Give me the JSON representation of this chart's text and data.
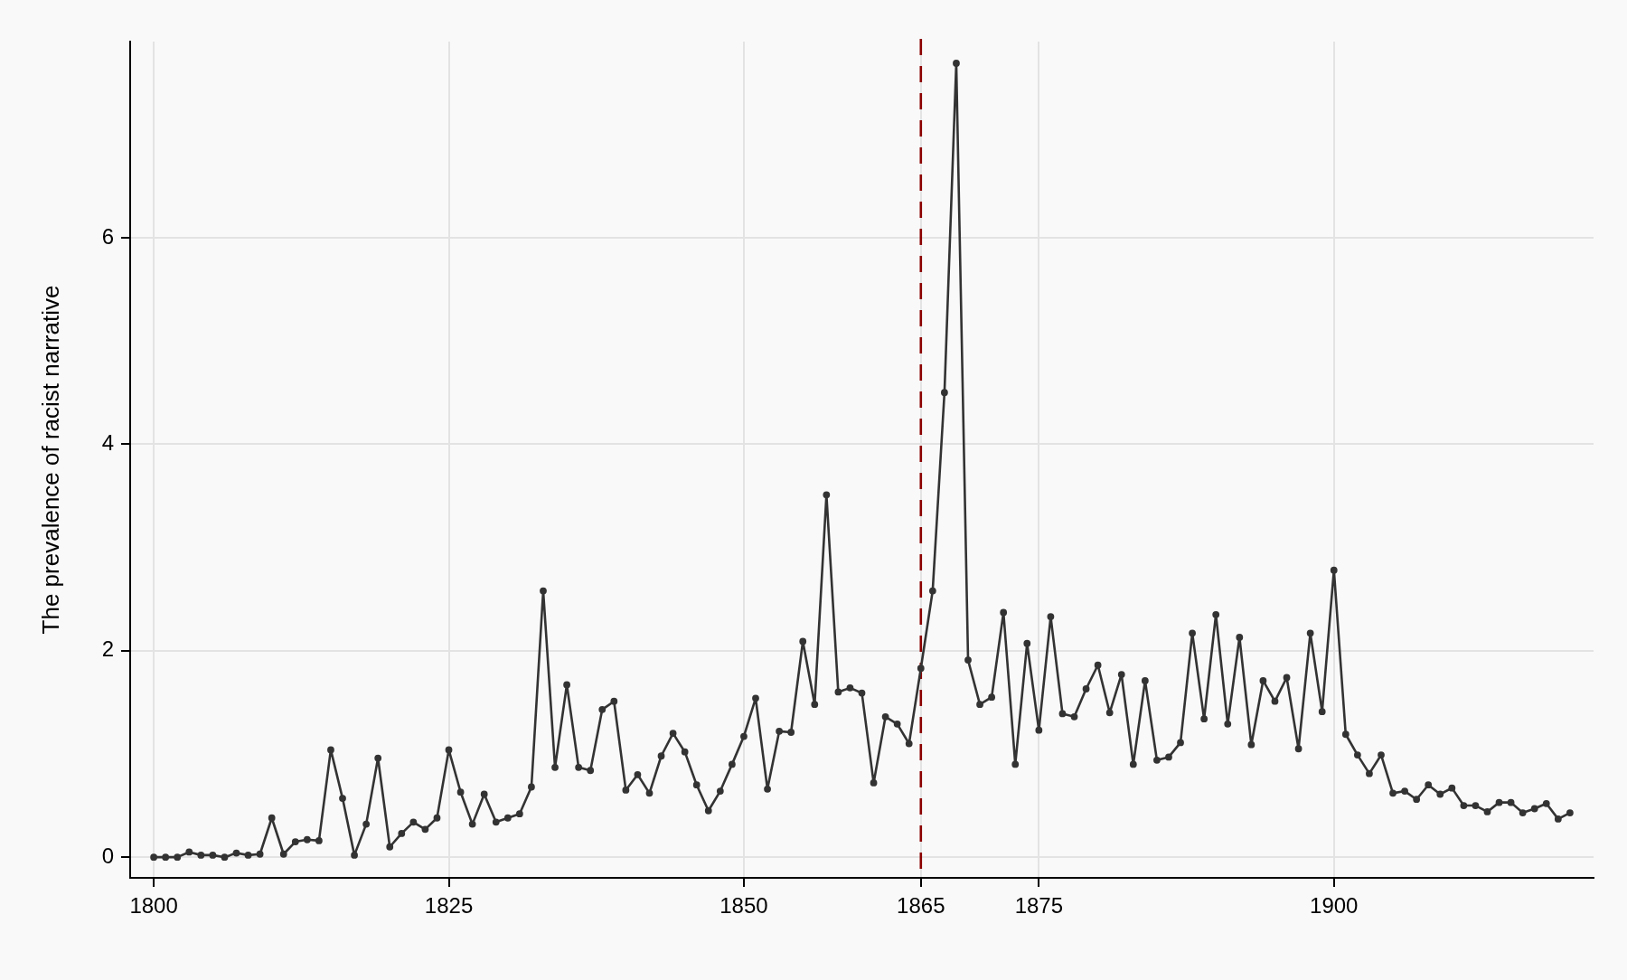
{
  "chart_data": {
    "type": "line",
    "ylabel": "The prevalence of racist narrative",
    "x": [
      1800,
      1801,
      1802,
      1803,
      1804,
      1805,
      1806,
      1807,
      1808,
      1809,
      1810,
      1811,
      1812,
      1813,
      1814,
      1815,
      1816,
      1817,
      1818,
      1819,
      1820,
      1821,
      1822,
      1823,
      1824,
      1825,
      1826,
      1827,
      1828,
      1829,
      1830,
      1831,
      1832,
      1833,
      1834,
      1835,
      1836,
      1837,
      1838,
      1839,
      1840,
      1841,
      1842,
      1843,
      1844,
      1845,
      1846,
      1847,
      1848,
      1849,
      1850,
      1851,
      1852,
      1853,
      1854,
      1855,
      1856,
      1857,
      1858,
      1859,
      1860,
      1861,
      1862,
      1863,
      1864,
      1865,
      1866,
      1867,
      1868,
      1869,
      1870,
      1871,
      1872,
      1873,
      1874,
      1875,
      1876,
      1877,
      1878,
      1879,
      1880,
      1881,
      1882,
      1883,
      1884,
      1885,
      1886,
      1887,
      1888,
      1889,
      1890,
      1891,
      1892,
      1893,
      1894,
      1895,
      1896,
      1897,
      1898,
      1899,
      1900,
      1901,
      1902,
      1903,
      1904,
      1905,
      1906,
      1907,
      1908,
      1909,
      1910,
      1911,
      1912,
      1913,
      1914,
      1915,
      1916,
      1917,
      1918,
      1919,
      1920
    ],
    "values": [
      0,
      0,
      0,
      0.05,
      0.02,
      0.02,
      0,
      0.04,
      0.02,
      0.03,
      0.38,
      0.03,
      0.15,
      0.17,
      0.16,
      1.04,
      0.57,
      0.02,
      0.32,
      0.96,
      0.1,
      0.23,
      0.34,
      0.27,
      0.38,
      1.04,
      0.63,
      0.32,
      0.61,
      0.34,
      0.38,
      0.42,
      0.68,
      2.58,
      0.87,
      1.67,
      0.87,
      0.84,
      1.43,
      1.51,
      0.65,
      0.8,
      0.62,
      0.98,
      1.2,
      1.02,
      0.7,
      0.45,
      0.64,
      0.9,
      1.17,
      1.54,
      0.66,
      1.22,
      1.21,
      2.09,
      1.48,
      3.51,
      1.6,
      1.64,
      1.59,
      0.72,
      1.36,
      1.29,
      1.1,
      1.83,
      2.58,
      4.5,
      7.69,
      1.91,
      1.48,
      1.55,
      2.37,
      0.9,
      2.07,
      1.23,
      2.33,
      1.39,
      1.36,
      1.63,
      1.86,
      1.4,
      1.77,
      0.9,
      1.71,
      0.94,
      0.97,
      1.11,
      2.17,
      1.34,
      2.35,
      1.29,
      2.13,
      1.09,
      1.71,
      1.51,
      1.74,
      1.05,
      2.17,
      1.41,
      2.78,
      1.19,
      0.99,
      0.81,
      0.99,
      0.62,
      0.64,
      0.56,
      0.7,
      0.61,
      0.67,
      0.5,
      0.5,
      0.44,
      0.53,
      0.53,
      0.43,
      0.47,
      0.52,
      0.37,
      0.43
    ],
    "color": "#333333",
    "xlim": [
      1798,
      1922
    ],
    "ylim": [
      -0.2,
      7.9
    ],
    "xticks": [
      1800,
      1825,
      1850,
      1865,
      1875,
      1900
    ],
    "yticks": [
      0,
      2,
      4,
      6
    ],
    "grid": true,
    "marker": "circle",
    "line_style": "solid",
    "ref_lines": [
      {
        "axis": "x",
        "value": 1865,
        "color": "#8b0000",
        "line_style": "dashed"
      }
    ]
  }
}
